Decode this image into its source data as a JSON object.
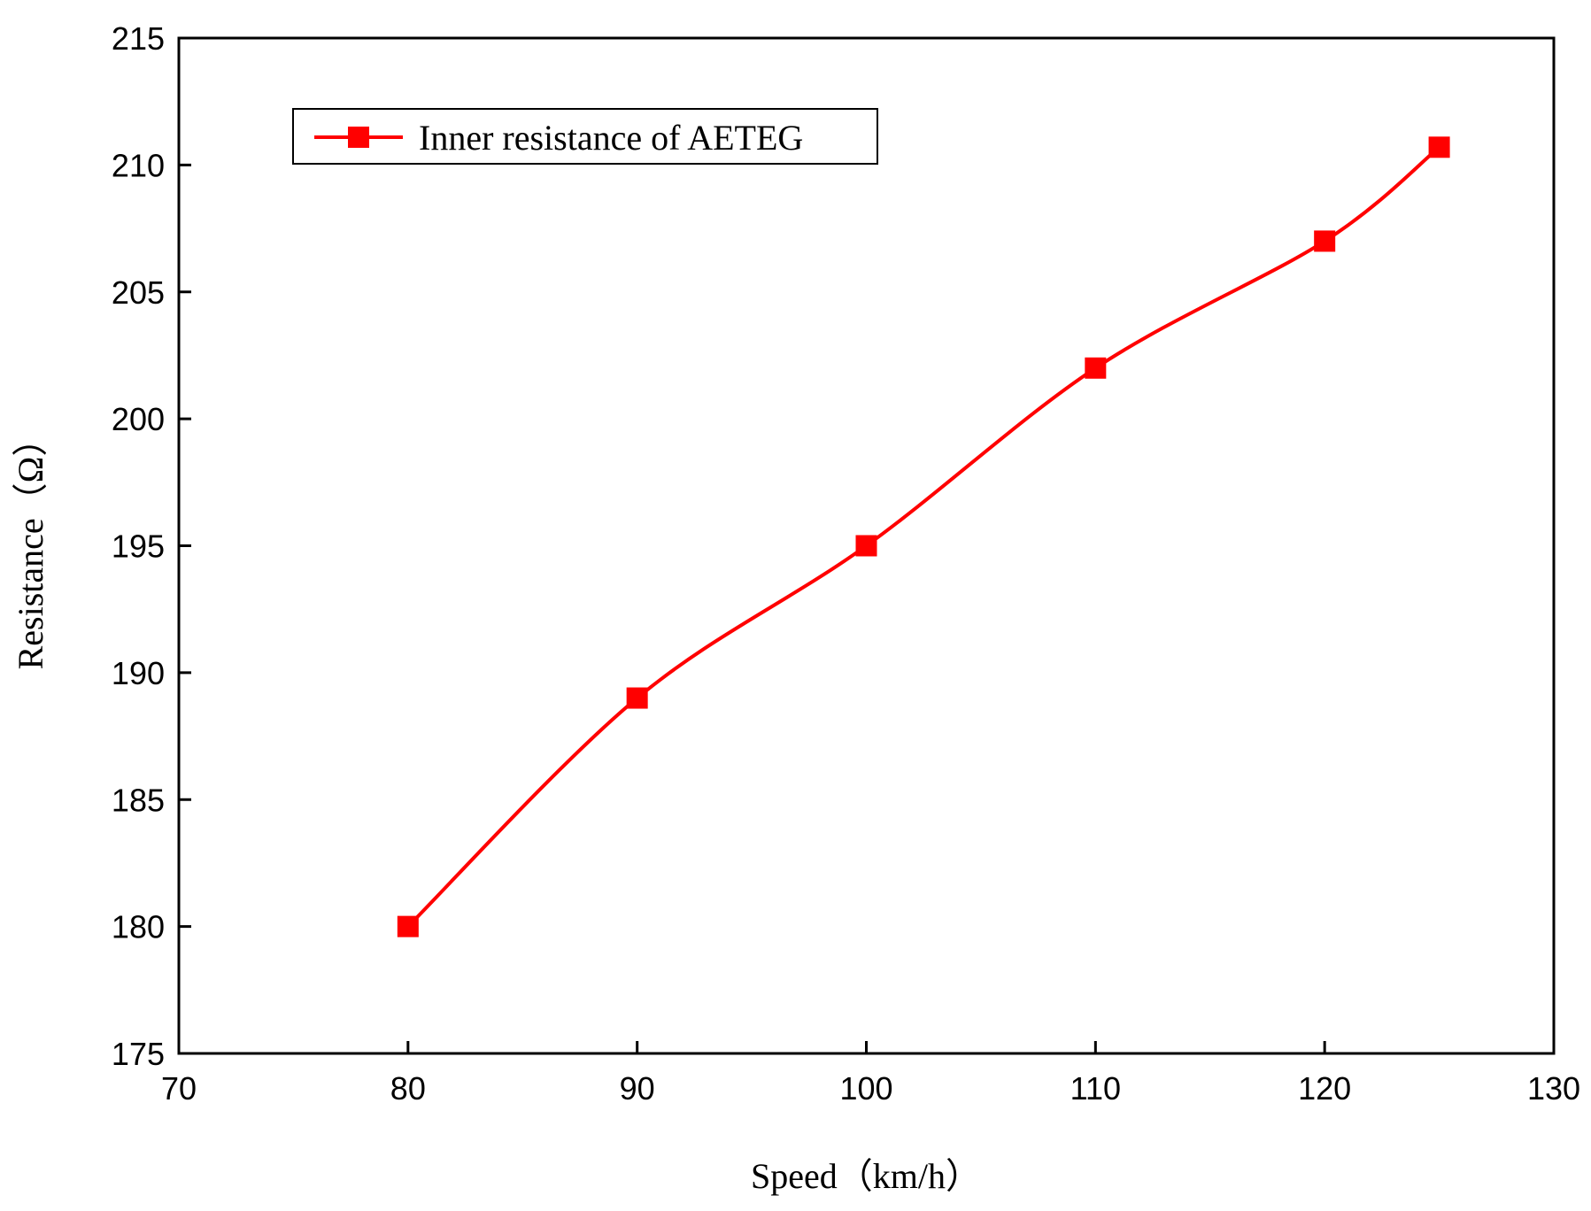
{
  "chart_data": {
    "type": "line",
    "title": "",
    "xlabel": "Speed（km/h）",
    "ylabel": "Resistance（Ω）",
    "xlim": [
      70,
      130
    ],
    "ylim": [
      175,
      215
    ],
    "xticks": [
      70,
      80,
      90,
      100,
      110,
      120,
      130
    ],
    "yticks": [
      175,
      180,
      185,
      190,
      195,
      200,
      205,
      210,
      215
    ],
    "grid": false,
    "legend_position": "top-left",
    "series": [
      {
        "name": "Inner resistance of AETEG",
        "color": "#ff0000",
        "marker": "square",
        "x": [
          80,
          90,
          100,
          110,
          120,
          125
        ],
        "y": [
          180,
          189,
          195,
          202,
          207,
          210.7
        ]
      }
    ]
  }
}
